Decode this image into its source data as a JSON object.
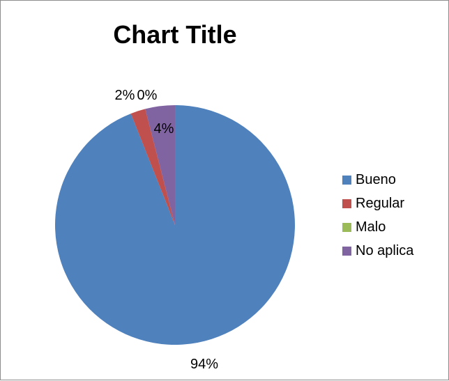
{
  "chart_data": {
    "type": "pie",
    "title": "Chart Title",
    "categories": [
      "Bueno",
      "Regular",
      "Malo",
      "No aplica"
    ],
    "values": [
      94,
      2,
      0,
      4
    ],
    "labels": [
      "94%",
      "2%",
      "0%",
      "4%"
    ],
    "colors": [
      "#4f81bd",
      "#c0504d",
      "#9bbb59",
      "#8064a2"
    ],
    "legend_position": "right"
  }
}
